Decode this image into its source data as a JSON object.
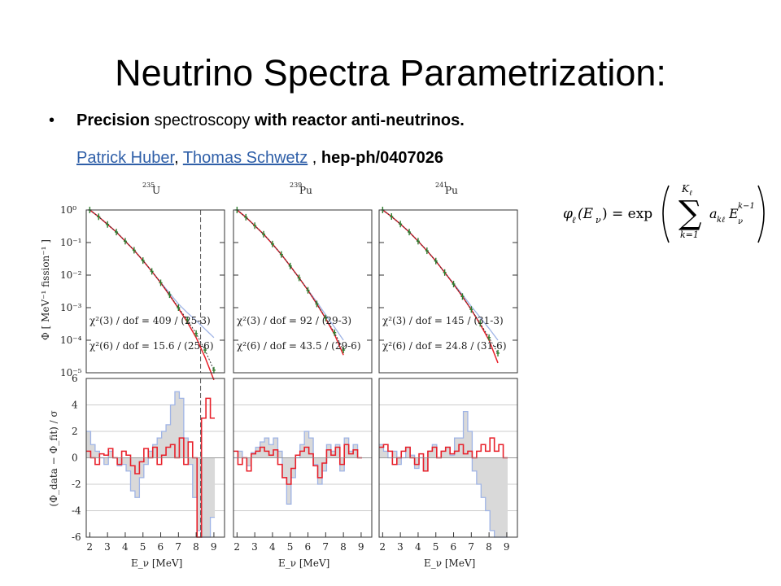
{
  "slide": {
    "title": "Neutrino Spectra Parametrization:",
    "bullet_symbol": "•",
    "bullet_bold_1": "Precision",
    "bullet_plain": " spectroscopy ",
    "bullet_bold_2": "with reactor anti-neutrinos.",
    "author_1": "Patrick Huber",
    "author_sep": ", ",
    "author_2": "Thomas Schwetz",
    "ref_sep": " , ",
    "reference": "hep-ph/0407026"
  },
  "formula": {
    "lhs": "φ",
    "lhs_sub": "ℓ",
    "lhs_arg": "(E",
    "lhs_arg_sub": "ν",
    "lhs_close": ")",
    "eq": "= exp",
    "sum_upper": "K",
    "sum_upper_sub": "ℓ",
    "sum_lower": "k=1",
    "term": "a",
    "term_sub": "kℓ",
    "term_var": "E",
    "term_var_sub": "ν",
    "term_var_sup": "k−1"
  },
  "colors": {
    "fit3": "#9fb4e6",
    "fit6": "#e8202a",
    "data_points": "#2e7d2e",
    "data_curve": "#333333",
    "shade": "#d9d9d9",
    "frame": "#333333",
    "chi3_text": "#2b44c8",
    "chi6_text": "#e8202a",
    "link": "#2f5fa8"
  },
  "chart_data": [
    {
      "type": "line",
      "isotope_mass": "235",
      "isotope": "U",
      "ylabel": "Φ  [ MeV⁻¹ fission⁻¹ ]",
      "y_scale": "log",
      "ylim": [
        1e-05,
        1
      ],
      "yticks": [
        "10⁰",
        "10⁻¹",
        "10⁻²",
        "10⁻³",
        "10⁻⁴",
        "10⁻⁵"
      ],
      "xlim": [
        1.8,
        9.6
      ],
      "vline": 8.25,
      "chi3": "χ²(3) / dof = 409 / (25-3)",
      "chi6": "χ²(6) / dof = 15.6 / (25-6)",
      "x": [
        2.0,
        2.5,
        3.0,
        3.5,
        4.0,
        4.5,
        5.0,
        5.5,
        6.0,
        6.5,
        7.0,
        7.5,
        8.0,
        8.5,
        9.0
      ],
      "data": [
        1.0,
        0.62,
        0.36,
        0.21,
        0.11,
        0.058,
        0.028,
        0.013,
        0.0058,
        0.0025,
        0.001,
        0.00042,
        0.00016,
        5e-05,
        1.2e-05
      ],
      "fit3": [
        1.0,
        0.62,
        0.36,
        0.21,
        0.11,
        0.058,
        0.028,
        0.013,
        0.006,
        0.0028,
        0.0013,
        0.0007,
        0.0004,
        0.00022,
        0.00012
      ],
      "fit6": [
        1.0,
        0.62,
        0.36,
        0.21,
        0.11,
        0.058,
        0.028,
        0.013,
        0.0058,
        0.0024,
        0.00095,
        0.00036,
        0.00012,
        3e-05,
        4e-06
      ]
    },
    {
      "type": "line",
      "isotope_mass": "239",
      "isotope": "Pu",
      "y_scale": "log",
      "ylim": [
        1e-05,
        1
      ],
      "xlim": [
        1.8,
        9.6
      ],
      "chi3": "χ²(3) / dof = 92 / (29-3)",
      "chi6": "χ²(6) / dof = 43.5 / (29-6)",
      "x": [
        2.0,
        2.5,
        3.0,
        3.5,
        4.0,
        4.5,
        5.0,
        5.5,
        6.0,
        6.5,
        7.0,
        7.5,
        8.0
      ],
      "data": [
        1.0,
        0.6,
        0.33,
        0.18,
        0.09,
        0.043,
        0.019,
        0.0082,
        0.0034,
        0.0013,
        0.00048,
        0.00017,
        5e-05
      ],
      "fit3": [
        1.0,
        0.6,
        0.33,
        0.18,
        0.09,
        0.043,
        0.019,
        0.0082,
        0.0035,
        0.0015,
        0.0006,
        0.00025,
        0.0001
      ],
      "fit6": [
        1.0,
        0.6,
        0.33,
        0.18,
        0.09,
        0.043,
        0.019,
        0.0082,
        0.0034,
        0.0013,
        0.00046,
        0.00015,
        3.5e-05
      ]
    },
    {
      "type": "line",
      "isotope_mass": "241",
      "isotope": "Pu",
      "y_scale": "log",
      "ylim": [
        1e-05,
        1
      ],
      "xlim": [
        1.8,
        9.6
      ],
      "chi3": "χ²(3) / dof = 145 / (31-3)",
      "chi6": "χ²(6) / dof = 24.8 / (31-6)",
      "x": [
        2.0,
        2.5,
        3.0,
        3.5,
        4.0,
        4.5,
        5.0,
        5.5,
        6.0,
        6.5,
        7.0,
        7.5,
        8.0,
        8.5
      ],
      "data": [
        1.0,
        0.63,
        0.37,
        0.21,
        0.11,
        0.056,
        0.027,
        0.012,
        0.0053,
        0.0022,
        0.00088,
        0.00033,
        0.00012,
        4e-05
      ],
      "fit3": [
        1.0,
        0.63,
        0.37,
        0.21,
        0.11,
        0.056,
        0.027,
        0.012,
        0.0055,
        0.0025,
        0.0011,
        0.0005,
        0.00023,
        0.0001
      ],
      "fit6": [
        1.0,
        0.63,
        0.37,
        0.21,
        0.11,
        0.056,
        0.027,
        0.012,
        0.0053,
        0.0022,
        0.00086,
        0.00031,
        0.0001,
        2e-05
      ]
    },
    {
      "type": "area",
      "ylabel": "(Φ_data − Φ_fit) / σ",
      "ylim": [
        -6,
        6
      ],
      "yticks": [
        "6",
        "4",
        "2",
        "0",
        "-2",
        "-4",
        "-6"
      ],
      "xlabel": "E_ν [MeV]",
      "xticks": [
        "2",
        "3",
        "4",
        "5",
        "6",
        "7",
        "8",
        "9"
      ],
      "xlim": [
        1.8,
        9.6
      ],
      "vline": 8.25,
      "bin_edges": [
        1.8,
        2.05,
        2.3,
        2.55,
        2.8,
        3.05,
        3.3,
        3.55,
        3.8,
        4.05,
        4.3,
        4.55,
        4.8,
        5.05,
        5.3,
        5.55,
        5.8,
        6.05,
        6.3,
        6.55,
        6.8,
        7.05,
        7.3,
        7.55,
        7.8,
        8.05,
        8.3,
        8.55,
        8.8,
        9.05
      ],
      "residual3": [
        2.0,
        1.0,
        0.5,
        0.0,
        -0.5,
        0.5,
        0.0,
        -0.6,
        -0.5,
        -1.0,
        -2.5,
        -3.0,
        -1.5,
        -0.5,
        0.5,
        1.0,
        1.5,
        2.0,
        2.5,
        4.0,
        5.0,
        4.5,
        1.5,
        -0.5,
        -3.0,
        -5.5,
        -6.0,
        -6.0,
        -4.5
      ],
      "residual6": [
        0.5,
        0.0,
        -0.5,
        0.3,
        0.2,
        0.7,
        0.0,
        -0.5,
        0.5,
        0.2,
        -0.6,
        -1.2,
        -0.3,
        0.7,
        0.0,
        0.8,
        -0.5,
        0.2,
        0.8,
        1.0,
        0.0,
        1.5,
        -0.5,
        1.2,
        0.0,
        -6.0,
        3.0,
        4.5,
        3.0
      ]
    },
    {
      "type": "area",
      "ylim": [
        -6,
        6
      ],
      "xlabel": "E_ν [MeV]",
      "xticks": [
        "2",
        "3",
        "4",
        "5",
        "6",
        "7",
        "8",
        "9"
      ],
      "xlim": [
        1.8,
        9.6
      ],
      "bin_edges": [
        1.8,
        2.05,
        2.3,
        2.55,
        2.8,
        3.05,
        3.3,
        3.55,
        3.8,
        4.05,
        4.3,
        4.55,
        4.8,
        5.05,
        5.3,
        5.55,
        5.8,
        6.05,
        6.3,
        6.55,
        6.8,
        7.05,
        7.3,
        7.55,
        7.8,
        8.05,
        8.3,
        8.55,
        8.8,
        9.05
      ],
      "residual3": [
        0.0,
        0.5,
        0.0,
        -0.6,
        0.4,
        0.8,
        1.2,
        1.5,
        1.0,
        1.5,
        0.5,
        -1.5,
        -3.5,
        -1.5,
        0.0,
        1.0,
        2.0,
        1.5,
        -0.5,
        -2.0,
        -1.0,
        1.0,
        0.5,
        1.0,
        -1.0,
        1.5,
        0.5,
        1.0,
        0.0
      ],
      "residual6": [
        0.5,
        -0.5,
        0.0,
        -1.0,
        0.3,
        0.5,
        0.8,
        0.5,
        0.2,
        0.6,
        -0.5,
        -1.5,
        -2.0,
        -0.8,
        0.2,
        0.5,
        0.8,
        0.3,
        -0.6,
        -1.5,
        -0.4,
        0.6,
        0.2,
        0.8,
        -0.5,
        1.0,
        0.3,
        0.6,
        0.0
      ]
    },
    {
      "type": "area",
      "ylim": [
        -6,
        6
      ],
      "xlabel": "E_ν [MeV]",
      "xticks": [
        "2",
        "3",
        "4",
        "5",
        "6",
        "7",
        "8",
        "9"
      ],
      "xlim": [
        1.8,
        9.6
      ],
      "bin_edges": [
        1.8,
        2.05,
        2.3,
        2.55,
        2.8,
        3.05,
        3.3,
        3.55,
        3.8,
        4.05,
        4.3,
        4.55,
        4.8,
        5.05,
        5.3,
        5.55,
        5.8,
        6.05,
        6.3,
        6.55,
        6.8,
        7.05,
        7.3,
        7.55,
        7.8,
        8.05,
        8.3,
        8.55,
        8.8,
        9.05
      ],
      "residual3": [
        1.0,
        0.5,
        0.0,
        0.5,
        -0.5,
        0.0,
        0.8,
        0.2,
        -0.8,
        0.0,
        -1.0,
        0.5,
        1.0,
        0.0,
        0.5,
        0.8,
        0.2,
        1.5,
        1.5,
        3.5,
        2.0,
        -1.0,
        -2.0,
        -3.0,
        -4.0,
        -5.5,
        -6.0,
        -6.0,
        -6.0
      ],
      "residual6": [
        0.8,
        1.0,
        0.5,
        -0.5,
        0.0,
        0.5,
        0.8,
        0.0,
        -0.5,
        0.3,
        -1.0,
        0.5,
        0.8,
        0.0,
        0.5,
        0.8,
        0.3,
        0.5,
        1.0,
        0.3,
        0.5,
        0.0,
        0.5,
        1.0,
        0.5,
        1.5,
        0.5,
        1.0,
        0.0
      ]
    }
  ]
}
